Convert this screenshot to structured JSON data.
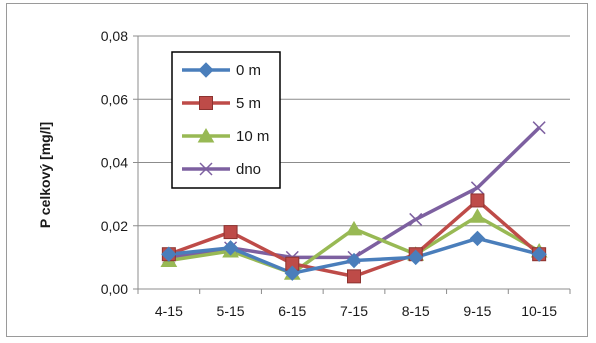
{
  "chart_data": {
    "type": "line",
    "categories": [
      "4-15",
      "5-15",
      "6-15",
      "7-15",
      "8-15",
      "9-15",
      "10-15"
    ],
    "ylabel": "P celkový [mg/l]",
    "xlabel": "",
    "ylim": [
      0,
      0.08
    ],
    "yticks": [
      0,
      0.02,
      0.04,
      0.06,
      0.08
    ],
    "ytick_labels": [
      "0,00",
      "0,02",
      "0,04",
      "0,06",
      "0,08"
    ],
    "grid": true,
    "legend_position": "top-left (inside plot)",
    "series": [
      {
        "name": "0 m",
        "color": "#4a7ebb",
        "marker": "diamond",
        "values": [
          0.011,
          0.013,
          0.005,
          0.009,
          0.01,
          0.016,
          0.011
        ]
      },
      {
        "name": "5 m",
        "color": "#be4b48",
        "marker": "square",
        "values": [
          0.011,
          0.018,
          0.008,
          0.004,
          0.011,
          0.028,
          0.011
        ]
      },
      {
        "name": "10 m",
        "color": "#98b954",
        "marker": "triangle",
        "values": [
          0.009,
          0.012,
          0.005,
          0.019,
          0.011,
          0.023,
          0.012
        ]
      },
      {
        "name": "dno",
        "color": "#7d60a0",
        "marker": "x",
        "values": [
          0.01,
          0.013,
          0.01,
          0.01,
          0.022,
          0.032,
          0.051
        ]
      }
    ]
  }
}
